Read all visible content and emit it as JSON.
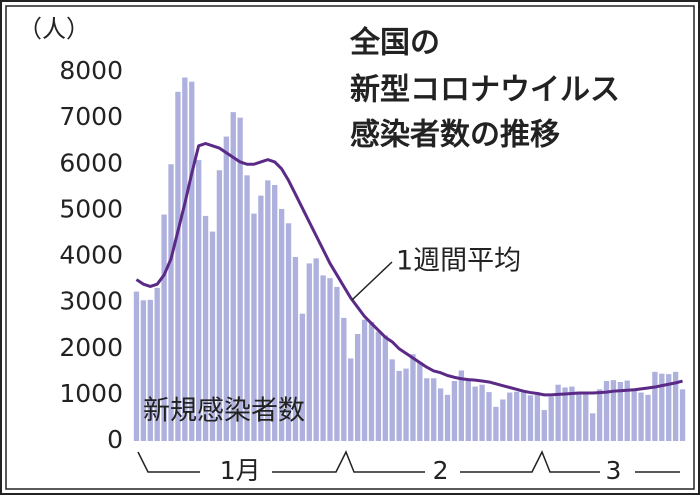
{
  "chart_data": {
    "type": "bar_line",
    "title": [
      "全国の",
      "新型コロナウイルス",
      "感染者数の推移"
    ],
    "y_unit": "（人）",
    "categories": [
      null,
      null,
      null,
      null,
      null,
      null,
      null,
      null,
      null,
      null,
      null,
      null,
      null,
      null,
      null,
      "1月",
      null,
      null,
      null,
      null,
      null,
      null,
      null,
      null,
      null,
      null,
      null,
      null,
      null,
      null,
      null,
      null,
      null,
      null,
      null,
      null,
      null,
      null,
      null,
      null,
      null,
      null,
      null,
      null,
      "2",
      null,
      null,
      null,
      null,
      null,
      null,
      null,
      null,
      null,
      null,
      null,
      null,
      null,
      null,
      null,
      null,
      null,
      null,
      null,
      null,
      null,
      null,
      null,
      null,
      "3",
      null,
      null,
      null,
      null,
      null,
      null,
      null,
      null,
      null,
      null
    ],
    "series": [
      {
        "name": "新規感染者数",
        "type": "bar",
        "color": "#aeb0de",
        "values": [
          3240,
          3050,
          3060,
          3320,
          4910,
          6000,
          7570,
          7880,
          7790,
          6090,
          4880,
          4540,
          5870,
          6600,
          7130,
          7010,
          5760,
          4930,
          5320,
          5650,
          5550,
          5030,
          4720,
          3990,
          2760,
          3850,
          3960,
          3590,
          3530,
          3340,
          2670,
          1790,
          2320,
          2630,
          2580,
          2370,
          2290,
          1770,
          1520,
          1570,
          1880,
          1710,
          1360,
          1360,
          1140,
          1000,
          1300,
          1530,
          1310,
          1180,
          1220,
          1060,
          740,
          900,
          1050,
          1070,
          1080,
          990,
          1000,
          670,
          960,
          1220,
          1160,
          1180,
          1060,
          1060,
          600,
          1120,
          1300,
          1320,
          1280,
          1310,
          1100,
          1050,
          1000,
          1500,
          1460,
          1450,
          1500,
          1120
        ]
      },
      {
        "name": "1週間平均",
        "type": "line",
        "color": "#5a2a86",
        "values": [
          3500,
          3400,
          3350,
          3400,
          3600,
          3950,
          4550,
          5150,
          5800,
          6400,
          6450,
          6400,
          6350,
          6250,
          6150,
          6050,
          6000,
          6000,
          6050,
          6100,
          6050,
          5900,
          5650,
          5350,
          5050,
          4750,
          4450,
          4150,
          3850,
          3600,
          3350,
          3100,
          2900,
          2700,
          2550,
          2400,
          2250,
          2150,
          2000,
          1900,
          1800,
          1700,
          1600,
          1520,
          1480,
          1420,
          1380,
          1350,
          1330,
          1320,
          1300,
          1280,
          1240,
          1200,
          1160,
          1120,
          1080,
          1050,
          1030,
          1000,
          1000,
          1010,
          1020,
          1030,
          1040,
          1040,
          1040,
          1050,
          1060,
          1080,
          1090,
          1100,
          1110,
          1130,
          1150,
          1170,
          1200,
          1230,
          1260,
          1300
        ]
      }
    ],
    "ylim": [
      0,
      8000
    ],
    "yticks": [
      0,
      1000,
      2000,
      3000,
      4000,
      5000,
      6000,
      7000,
      8000
    ]
  }
}
